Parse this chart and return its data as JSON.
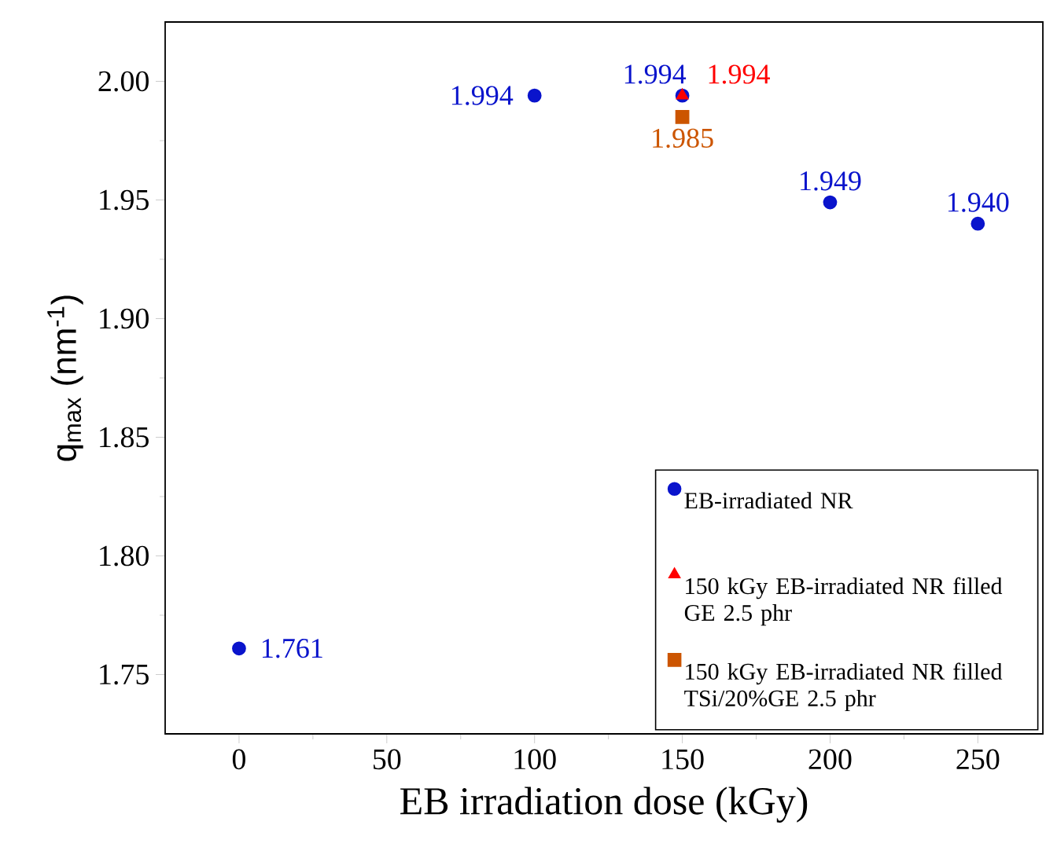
{
  "chart_data": {
    "type": "scatter",
    "xlabel": "EB irradiation dose (kGy)",
    "ylabel": "q$_{max}$ (nm$^{-1}$)",
    "xlim": [
      -25,
      272
    ],
    "ylim": [
      1.725,
      2.025
    ],
    "xticks": [
      0,
      50,
      100,
      150,
      200,
      250
    ],
    "yticks": [
      1.75,
      {
        "value": 1.8,
        "label": "1.80"
      },
      1.85,
      {
        "value": 1.9,
        "label": "1.90"
      },
      1.95,
      {
        "value": 2.0,
        "label": "2.00"
      }
    ],
    "legend": "bottom right",
    "series": [
      {
        "name": "EB-irradiated NR",
        "color": "#0a14cc",
        "marker": "circle",
        "x": [
          0,
          100,
          150,
          200,
          250
        ],
        "values": [
          1.761,
          1.994,
          1.994,
          1.949,
          1.94
        ],
        "value_labels": [
          "1.761",
          "1.994",
          "1.994",
          "1.949",
          "1.940"
        ]
      },
      {
        "name": "150 kGy EB-irradiated NR filled GE 2.5 phr",
        "color": "#ff0000",
        "marker": "triangle",
        "x": [
          150
        ],
        "values": [
          1.994
        ],
        "value_labels": [
          "1.994"
        ]
      },
      {
        "name": "150 kGy EB-irradiated NR filled TSi/20%GE 2.5 phr",
        "color": "#cc5500",
        "marker": "square",
        "x": [
          150
        ],
        "values": [
          1.985
        ],
        "value_labels": [
          "1.985"
        ]
      }
    ]
  }
}
